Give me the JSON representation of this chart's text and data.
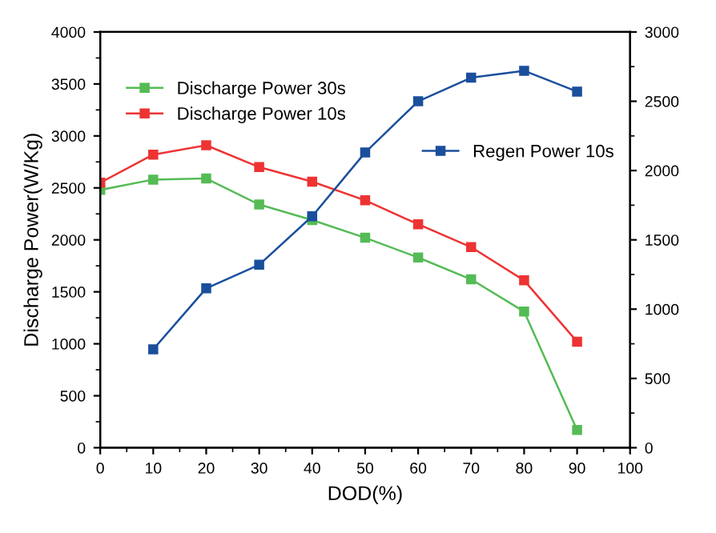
{
  "chart_data": {
    "type": "line",
    "xlabel": "DOD(%)",
    "ylabel": "Discharge Power(W/Kg)",
    "x": [
      0,
      10,
      20,
      30,
      40,
      50,
      60,
      70,
      80,
      90
    ],
    "series": [
      {
        "name": "Discharge Power 30s",
        "color": "#55bb55",
        "values": [
          2480,
          2580,
          2590,
          2340,
          2190,
          2020,
          1830,
          1620,
          1310,
          170
        ]
      },
      {
        "name": "Discharge Power 10s",
        "color": "#ee3333",
        "values": [
          2550,
          2820,
          2910,
          2700,
          2560,
          2380,
          2150,
          1930,
          1610,
          1020
        ]
      },
      {
        "name": "Regen Power 10s",
        "color": "#1a4f9c",
        "axis": "y2",
        "values": [
          null,
          710,
          1150,
          1320,
          1670,
          2130,
          2500,
          2670,
          2720,
          2570
        ]
      }
    ],
    "xlim": [
      0,
      100
    ],
    "xticks": [
      0,
      10,
      20,
      30,
      40,
      50,
      60,
      70,
      80,
      90,
      100
    ],
    "ylim": [
      0,
      4000
    ],
    "yticks": [
      0,
      500,
      1000,
      1500,
      2000,
      2500,
      3000,
      3500,
      4000
    ],
    "y2lim": [
      0,
      3000
    ],
    "y2ticks": [
      0,
      500,
      1000,
      1500,
      2000,
      2500,
      3000
    ],
    "marker": "square",
    "line_style": "solid",
    "grid": false,
    "legend": "top left"
  }
}
